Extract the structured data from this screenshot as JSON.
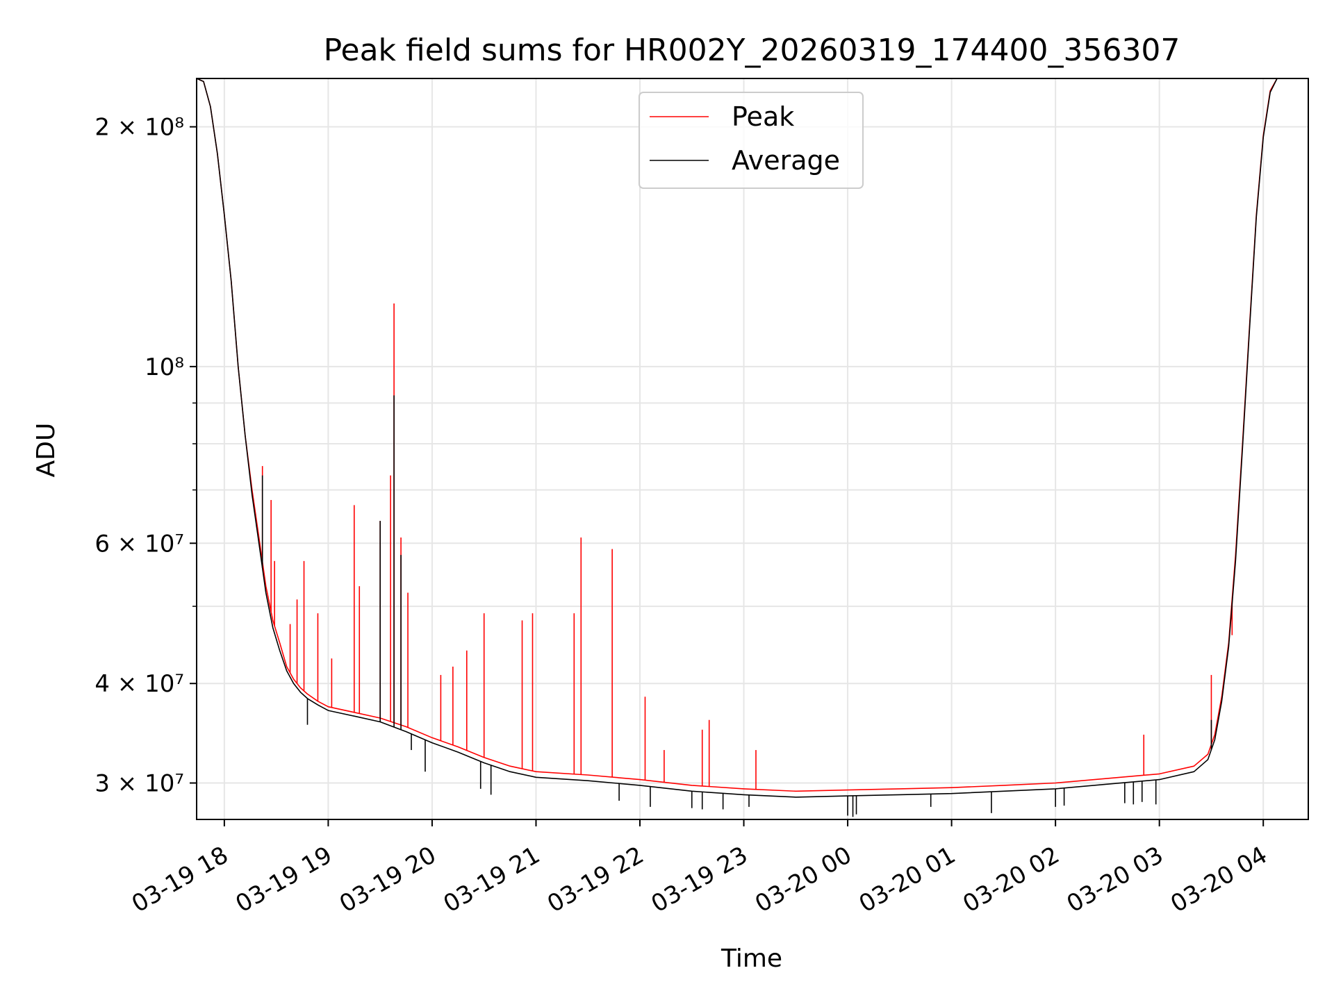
{
  "chart_data": {
    "type": "line",
    "title": "Peak field sums for HR002Y_20260319_174400_356307",
    "xlabel": "Time",
    "ylabel": "ADU",
    "yscale": "log",
    "grid": true,
    "legend_position": "upper center",
    "x_range": [
      "2026-03-19 17:44",
      "2026-03-20 04:26"
    ],
    "ylim": [
      27000000,
      230000000
    ],
    "x_ticks": [
      {
        "t": "2026-03-19 18:00",
        "label": "03-19 18"
      },
      {
        "t": "2026-03-19 19:00",
        "label": "03-19 19"
      },
      {
        "t": "2026-03-19 20:00",
        "label": "03-19 20"
      },
      {
        "t": "2026-03-19 21:00",
        "label": "03-19 21"
      },
      {
        "t": "2026-03-19 22:00",
        "label": "03-19 22"
      },
      {
        "t": "2026-03-19 23:00",
        "label": "03-19 23"
      },
      {
        "t": "2026-03-20 00:00",
        "label": "03-20 00"
      },
      {
        "t": "2026-03-20 01:00",
        "label": "03-20 01"
      },
      {
        "t": "2026-03-20 02:00",
        "label": "03-20 02"
      },
      {
        "t": "2026-03-20 03:00",
        "label": "03-20 03"
      },
      {
        "t": "2026-03-20 04:00",
        "label": "03-20 04"
      }
    ],
    "y_ticks": [
      {
        "value": 30000000,
        "label": "3 × 10⁷"
      },
      {
        "value": 40000000,
        "label": "4 × 10⁷"
      },
      {
        "value": 60000000,
        "label": "6 × 10⁷"
      },
      {
        "value": 100000000,
        "label": "10⁸"
      },
      {
        "value": 200000000,
        "label": "2 × 10⁸"
      }
    ],
    "y_minor_ticks": [
      50000000,
      70000000,
      80000000,
      90000000
    ],
    "series": [
      {
        "name": "Peak",
        "color": "#ff0000",
        "points": [
          [
            "2026-03-19 17:44",
            230000000
          ],
          [
            "2026-03-19 17:48",
            228000000
          ],
          [
            "2026-03-19 17:52",
            212000000
          ],
          [
            "2026-03-19 17:56",
            185000000
          ],
          [
            "2026-03-19 18:00",
            155000000
          ],
          [
            "2026-03-19 18:04",
            128000000
          ],
          [
            "2026-03-19 18:08",
            100000000
          ],
          [
            "2026-03-19 18:12",
            82000000
          ],
          [
            "2026-03-19 18:16",
            70000000
          ],
          [
            "2026-03-19 18:20",
            61000000
          ],
          [
            "2026-03-19 18:24",
            53000000
          ],
          [
            "2026-03-19 18:28",
            48000000
          ],
          [
            "2026-03-19 18:32",
            45000000
          ],
          [
            "2026-03-19 18:36",
            42000000
          ],
          [
            "2026-03-19 18:40",
            40500000
          ],
          [
            "2026-03-19 18:44",
            39500000
          ],
          [
            "2026-03-19 18:48",
            38800000
          ],
          [
            "2026-03-19 18:54",
            38000000
          ],
          [
            "2026-03-19 19:00",
            37400000
          ],
          [
            "2026-03-19 19:15",
            36800000
          ],
          [
            "2026-03-19 19:30",
            36200000
          ],
          [
            "2026-03-19 19:45",
            35300000
          ],
          [
            "2026-03-19 20:00",
            34200000
          ],
          [
            "2026-03-19 20:15",
            33300000
          ],
          [
            "2026-03-19 20:30",
            32300000
          ],
          [
            "2026-03-19 20:45",
            31500000
          ],
          [
            "2026-03-19 21:00",
            31000000
          ],
          [
            "2026-03-19 21:30",
            30700000
          ],
          [
            "2026-03-19 22:00",
            30300000
          ],
          [
            "2026-03-19 22:30",
            29800000
          ],
          [
            "2026-03-19 23:00",
            29500000
          ],
          [
            "2026-03-19 23:30",
            29300000
          ],
          [
            "2026-03-20 00:00",
            29400000
          ],
          [
            "2026-03-20 00:30",
            29500000
          ],
          [
            "2026-03-20 01:00",
            29600000
          ],
          [
            "2026-03-20 01:30",
            29800000
          ],
          [
            "2026-03-20 02:00",
            30000000
          ],
          [
            "2026-03-20 02:30",
            30400000
          ],
          [
            "2026-03-20 03:00",
            30800000
          ],
          [
            "2026-03-20 03:20",
            31500000
          ],
          [
            "2026-03-20 03:28",
            32600000
          ],
          [
            "2026-03-20 03:32",
            34500000
          ],
          [
            "2026-03-20 03:36",
            38500000
          ],
          [
            "2026-03-20 03:40",
            45000000
          ],
          [
            "2026-03-20 03:44",
            58000000
          ],
          [
            "2026-03-20 03:48",
            80000000
          ],
          [
            "2026-03-20 03:52",
            112000000
          ],
          [
            "2026-03-20 03:56",
            155000000
          ],
          [
            "2026-03-20 04:00",
            195000000
          ],
          [
            "2026-03-20 04:04",
            222000000
          ],
          [
            "2026-03-20 04:08",
            230000000
          ],
          [
            "2026-03-20 04:26",
            230000000
          ]
        ],
        "spikes": [
          [
            "2026-03-19 18:22",
            75000000
          ],
          [
            "2026-03-19 18:27",
            68000000
          ],
          [
            "2026-03-19 18:29",
            57000000
          ],
          [
            "2026-03-19 18:38",
            47500000
          ],
          [
            "2026-03-19 18:42",
            51000000
          ],
          [
            "2026-03-19 18:46",
            57000000
          ],
          [
            "2026-03-19 18:54",
            49000000
          ],
          [
            "2026-03-19 19:02",
            43000000
          ],
          [
            "2026-03-19 19:15",
            67000000
          ],
          [
            "2026-03-19 19:18",
            53000000
          ],
          [
            "2026-03-19 19:30",
            64000000
          ],
          [
            "2026-03-19 19:36",
            73000000
          ],
          [
            "2026-03-19 19:38",
            120000000
          ],
          [
            "2026-03-19 19:42",
            61000000
          ],
          [
            "2026-03-19 19:46",
            52000000
          ],
          [
            "2026-03-19 20:05",
            41000000
          ],
          [
            "2026-03-19 20:12",
            42000000
          ],
          [
            "2026-03-19 20:20",
            44000000
          ],
          [
            "2026-03-19 20:30",
            49000000
          ],
          [
            "2026-03-19 20:52",
            48000000
          ],
          [
            "2026-03-19 20:58",
            49000000
          ],
          [
            "2026-03-19 21:22",
            49000000
          ],
          [
            "2026-03-19 21:26",
            61000000
          ],
          [
            "2026-03-19 21:44",
            59000000
          ],
          [
            "2026-03-19 22:03",
            38500000
          ],
          [
            "2026-03-19 22:14",
            33000000
          ],
          [
            "2026-03-19 22:36",
            35000000
          ],
          [
            "2026-03-19 22:40",
            36000000
          ],
          [
            "2026-03-19 23:07",
            33000000
          ],
          [
            "2026-03-20 02:51",
            34500000
          ],
          [
            "2026-03-20 03:30",
            41000000
          ],
          [
            "2026-03-20 03:42",
            46000000
          ]
        ]
      },
      {
        "name": "Average",
        "color": "#000000",
        "points": [
          [
            "2026-03-19 17:44",
            230000000
          ],
          [
            "2026-03-19 17:48",
            228000000
          ],
          [
            "2026-03-19 17:52",
            212000000
          ],
          [
            "2026-03-19 17:56",
            185000000
          ],
          [
            "2026-03-19 18:00",
            155000000
          ],
          [
            "2026-03-19 18:04",
            128000000
          ],
          [
            "2026-03-19 18:08",
            100000000
          ],
          [
            "2026-03-19 18:12",
            82000000
          ],
          [
            "2026-03-19 18:16",
            69000000
          ],
          [
            "2026-03-19 18:20",
            60000000
          ],
          [
            "2026-03-19 18:24",
            52000000
          ],
          [
            "2026-03-19 18:28",
            47000000
          ],
          [
            "2026-03-19 18:32",
            44000000
          ],
          [
            "2026-03-19 18:36",
            41500000
          ],
          [
            "2026-03-19 18:40",
            40000000
          ],
          [
            "2026-03-19 18:44",
            39000000
          ],
          [
            "2026-03-19 18:48",
            38300000
          ],
          [
            "2026-03-19 18:54",
            37600000
          ],
          [
            "2026-03-19 19:00",
            37000000
          ],
          [
            "2026-03-19 19:15",
            36400000
          ],
          [
            "2026-03-19 19:30",
            35800000
          ],
          [
            "2026-03-19 19:45",
            34800000
          ],
          [
            "2026-03-19 20:00",
            33700000
          ],
          [
            "2026-03-19 20:15",
            32800000
          ],
          [
            "2026-03-19 20:30",
            31800000
          ],
          [
            "2026-03-19 20:45",
            31000000
          ],
          [
            "2026-03-19 21:00",
            30500000
          ],
          [
            "2026-03-19 21:30",
            30200000
          ],
          [
            "2026-03-19 22:00",
            29800000
          ],
          [
            "2026-03-19 22:30",
            29300000
          ],
          [
            "2026-03-19 23:00",
            29000000
          ],
          [
            "2026-03-19 23:30",
            28800000
          ],
          [
            "2026-03-20 00:00",
            28900000
          ],
          [
            "2026-03-20 00:30",
            29000000
          ],
          [
            "2026-03-20 01:00",
            29100000
          ],
          [
            "2026-03-20 01:30",
            29300000
          ],
          [
            "2026-03-20 02:00",
            29500000
          ],
          [
            "2026-03-20 02:30",
            29900000
          ],
          [
            "2026-03-20 03:00",
            30300000
          ],
          [
            "2026-03-20 03:20",
            31000000
          ],
          [
            "2026-03-20 03:28",
            32100000
          ],
          [
            "2026-03-20 03:32",
            34000000
          ],
          [
            "2026-03-20 03:36",
            38000000
          ],
          [
            "2026-03-20 03:40",
            44500000
          ],
          [
            "2026-03-20 03:44",
            57000000
          ],
          [
            "2026-03-20 03:48",
            79000000
          ],
          [
            "2026-03-20 03:52",
            111000000
          ],
          [
            "2026-03-20 03:56",
            154000000
          ],
          [
            "2026-03-20 04:00",
            194000000
          ],
          [
            "2026-03-20 04:04",
            221000000
          ],
          [
            "2026-03-20 04:08",
            230000000
          ],
          [
            "2026-03-20 04:26",
            230000000
          ]
        ],
        "spikes": [
          [
            "2026-03-19 19:30",
            64000000
          ],
          [
            "2026-03-19 19:38",
            92000000
          ],
          [
            "2026-03-19 19:42",
            58000000
          ],
          [
            "2026-03-19 18:22",
            73000000
          ],
          [
            "2026-03-20 03:30",
            36000000
          ]
        ],
        "dips": [
          [
            "2026-03-19 18:48",
            35500000
          ],
          [
            "2026-03-19 19:48",
            33000000
          ],
          [
            "2026-03-19 19:56",
            31000000
          ],
          [
            "2026-03-19 20:28",
            29500000
          ],
          [
            "2026-03-19 20:34",
            29000000
          ],
          [
            "2026-03-19 21:48",
            28500000
          ],
          [
            "2026-03-19 22:06",
            28000000
          ],
          [
            "2026-03-19 22:30",
            27900000
          ],
          [
            "2026-03-19 22:36",
            27800000
          ],
          [
            "2026-03-19 22:48",
            27800000
          ],
          [
            "2026-03-19 23:03",
            28000000
          ],
          [
            "2026-03-20 00:00",
            27300000
          ],
          [
            "2026-03-20 00:03",
            27200000
          ],
          [
            "2026-03-20 00:05",
            27400000
          ],
          [
            "2026-03-20 00:48",
            28000000
          ],
          [
            "2026-03-20 01:23",
            27500000
          ],
          [
            "2026-03-20 02:00",
            28000000
          ],
          [
            "2026-03-20 02:05",
            28100000
          ],
          [
            "2026-03-20 02:40",
            28300000
          ],
          [
            "2026-03-20 02:45",
            28200000
          ],
          [
            "2026-03-20 02:50",
            28400000
          ],
          [
            "2026-03-20 02:58",
            28200000
          ]
        ]
      }
    ]
  }
}
